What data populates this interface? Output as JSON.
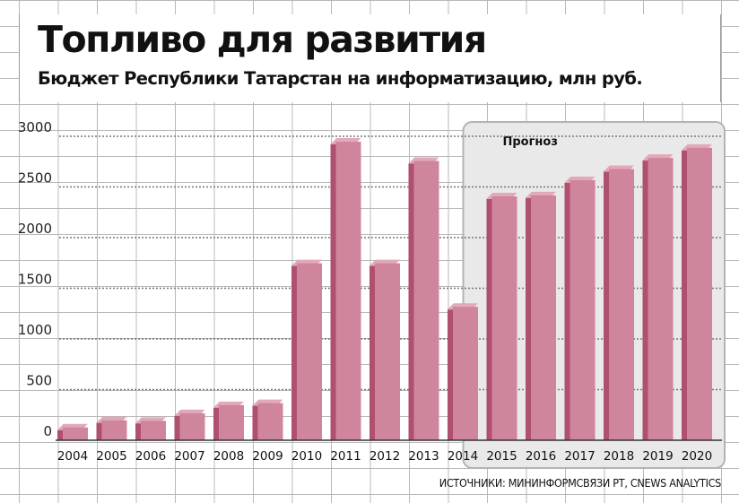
{
  "header": {
    "title": "Топливо для развития",
    "subtitle": "Бюджет Республики Татарстан на информатизацию, млн руб."
  },
  "source": "ИСТОЧНИКИ: МИНИНФОРМСВЯЗИ РТ, CNEWS ANALYTICS",
  "chart_data": {
    "type": "bar",
    "title": "Топливо для развития",
    "subtitle": "Бюджет Республики Татарстан на информатизацию, млн руб.",
    "categories": [
      "2004",
      "2005",
      "2006",
      "2007",
      "2008",
      "2009",
      "2010",
      "2011",
      "2012",
      "2013",
      "2014",
      "2015",
      "2016",
      "2017",
      "2018",
      "2019",
      "2020"
    ],
    "values": [
      100,
      170,
      165,
      240,
      320,
      340,
      1720,
      2920,
      1720,
      2730,
      1290,
      2380,
      2390,
      2540,
      2650,
      2760,
      2860
    ],
    "ylim": [
      0,
      3000
    ],
    "yticks": [
      0,
      500,
      1000,
      1500,
      2000,
      2500,
      3000
    ],
    "grid": true,
    "forecast": {
      "label": "Прогноз",
      "from": "2015",
      "to": "2020"
    },
    "colors": {
      "bar_front": "#cf859b",
      "bar_side": "#b0506f",
      "bar_top": "#e3a9b9",
      "forecast_bg": "#e9e9e9",
      "forecast_border": "#b3b3b3"
    }
  }
}
